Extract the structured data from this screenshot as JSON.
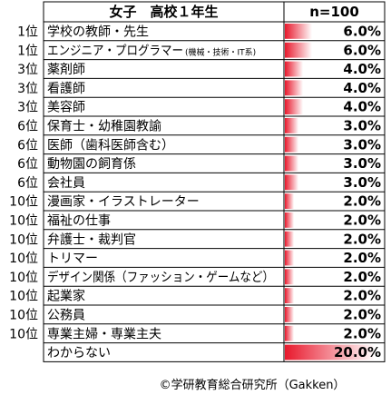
{
  "chart_data": {
    "type": "table",
    "header": {
      "label": "女子　高校１年生",
      "value": "n=100"
    },
    "bar_color": "#e8182c",
    "rows": [
      {
        "rank": "1位",
        "label": "学校の教師・先生",
        "note": "",
        "value": 6.0,
        "value_text": "6.0%"
      },
      {
        "rank": "1位",
        "label": "エンジニア・プログラマー",
        "note": "(機械・技術・IT系)",
        "value": 6.0,
        "value_text": "6.0%"
      },
      {
        "rank": "3位",
        "label": "薬剤師",
        "note": "",
        "value": 4.0,
        "value_text": "4.0%"
      },
      {
        "rank": "3位",
        "label": "看護師",
        "note": "",
        "value": 4.0,
        "value_text": "4.0%"
      },
      {
        "rank": "3位",
        "label": "美容師",
        "note": "",
        "value": 4.0,
        "value_text": "4.0%"
      },
      {
        "rank": "6位",
        "label": "保育士・幼稚園教諭",
        "note": "",
        "value": 3.0,
        "value_text": "3.0%"
      },
      {
        "rank": "6位",
        "label": "医師（歯科医師含む）",
        "note": "",
        "value": 3.0,
        "value_text": "3.0%"
      },
      {
        "rank": "6位",
        "label": "動物園の飼育係",
        "note": "",
        "value": 3.0,
        "value_text": "3.0%"
      },
      {
        "rank": "6位",
        "label": "会社員",
        "note": "",
        "value": 3.0,
        "value_text": "3.0%"
      },
      {
        "rank": "10位",
        "label": "漫画家・イラストレーター",
        "note": "",
        "value": 2.0,
        "value_text": "2.0%"
      },
      {
        "rank": "10位",
        "label": "福祉の仕事",
        "note": "",
        "value": 2.0,
        "value_text": "2.0%"
      },
      {
        "rank": "10位",
        "label": "弁護士・裁判官",
        "note": "",
        "value": 2.0,
        "value_text": "2.0%"
      },
      {
        "rank": "10位",
        "label": "トリマー",
        "note": "",
        "value": 2.0,
        "value_text": "2.0%"
      },
      {
        "rank": "10位",
        "label": "デザイン関係（ファッション・ゲームなど）",
        "note": "",
        "value": 2.0,
        "value_text": "2.0%"
      },
      {
        "rank": "10位",
        "label": "起業家",
        "note": "",
        "value": 2.0,
        "value_text": "2.0%"
      },
      {
        "rank": "10位",
        "label": "公務員",
        "note": "",
        "value": 2.0,
        "value_text": "2.0%"
      },
      {
        "rank": "10位",
        "label": "専業主婦・専業主夫",
        "note": "",
        "value": 2.0,
        "value_text": "2.0%"
      },
      {
        "rank": "",
        "label": "わからない",
        "note": "",
        "value": 20.0,
        "value_text": "20.0%"
      }
    ],
    "source": "©学研教育総合研究所（Gakken）"
  }
}
